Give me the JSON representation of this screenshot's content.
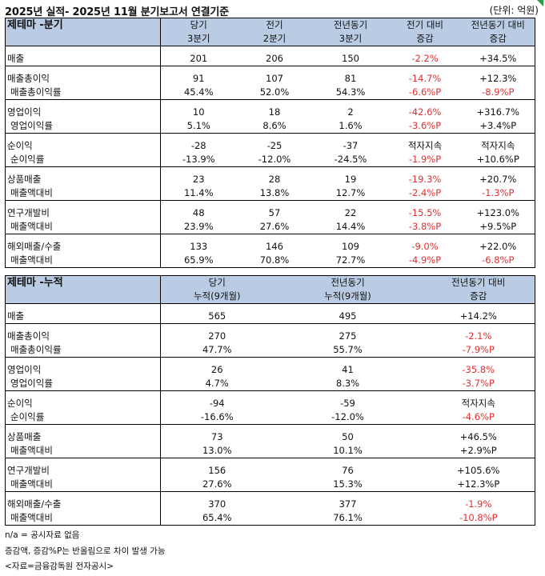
{
  "header": {
    "title": "2025년 실적- 2025년 11월 분기보고서 연결기준",
    "unit": "(단위: 억원)"
  },
  "quarterly": {
    "title": "제테마 -분기",
    "col1": [
      "당기",
      "3분기"
    ],
    "col2": [
      "전기",
      "2분기"
    ],
    "col3": [
      "전년동기",
      "3분기"
    ],
    "col4": [
      "전기 대비",
      "증감"
    ],
    "col5": [
      "전년동기 대비",
      "증감"
    ],
    "rows": [
      [
        "매출",
        "201",
        "206",
        "150",
        "-2.2%",
        "+34.5%"
      ],
      [
        "매출총이익",
        "91",
        "107",
        "81",
        "-14.7%",
        "+12.3%"
      ],
      [
        "매출총이익률",
        "45.4%",
        "52.0%",
        "54.3%",
        "-6.6%P",
        "-8.9%P"
      ],
      [
        "영업이익",
        "10",
        "18",
        "2",
        "-42.6%",
        "+316.7%"
      ],
      [
        "영업이익률",
        "5.1%",
        "8.6%",
        "1.6%",
        "-3.6%P",
        "+3.4%P"
      ],
      [
        "순이익",
        "-28",
        "-25",
        "-37",
        "적자지속",
        "적자지속"
      ],
      [
        "순이익률",
        "-13.9%",
        "-12.0%",
        "-24.5%",
        "-1.9%P",
        "+10.6%P"
      ],
      [
        "상품매출",
        "23",
        "28",
        "19",
        "-19.3%",
        "+20.7%"
      ],
      [
        "매출액대비",
        "11.4%",
        "13.8%",
        "12.7%",
        "-2.4%P",
        "-1.3%P"
      ],
      [
        "연구개발비",
        "48",
        "57",
        "22",
        "-15.5%",
        "+123.0%"
      ],
      [
        "매출액대비",
        "23.9%",
        "27.6%",
        "14.4%",
        "-3.8%P",
        "+9.5%P"
      ],
      [
        "해외매출/수출",
        "133",
        "146",
        "109",
        "-9.0%",
        "+22.0%"
      ],
      [
        "매출액대비",
        "65.9%",
        "70.8%",
        "72.7%",
        "-4.9%P",
        "-6.8%P"
      ]
    ]
  },
  "cumulative": {
    "title": "제테마 -누적",
    "col1": [
      "당기",
      "누적(9개월)"
    ],
    "col2": [
      "전년동기",
      "누적(9개월)"
    ],
    "col3": [
      "전년동기 대비",
      "증감"
    ],
    "rows": [
      [
        "매출",
        "565",
        "495",
        "+14.2%"
      ],
      [
        "매출총이익",
        "270",
        "275",
        "-2.1%"
      ],
      [
        "매출총이익률",
        "47.7%",
        "55.7%",
        "-7.9%P"
      ],
      [
        "영업이익",
        "26",
        "41",
        "-35.8%"
      ],
      [
        "영업이익률",
        "4.7%",
        "8.3%",
        "-3.7%P"
      ],
      [
        "순이익",
        "-94",
        "-59",
        "적자지속"
      ],
      [
        "순이익률",
        "-16.6%",
        "-12.0%",
        "-4.6%P"
      ],
      [
        "상품매출",
        "73",
        "50",
        "+46.5%"
      ],
      [
        "매출액대비",
        "13.0%",
        "10.1%",
        "+2.9%P"
      ],
      [
        "연구개발비",
        "156",
        "76",
        "+105.6%"
      ],
      [
        "매출액대비",
        "27.6%",
        "15.3%",
        "+12.3%P"
      ],
      [
        "해외매출/수출",
        "370",
        "377",
        "-1.9%"
      ],
      [
        "매출액대비",
        "65.4%",
        "76.1%",
        "-10.8%P"
      ]
    ]
  },
  "notes": [
    "n/a = 공시자료 없음",
    "증감액, 증감%P는 반올림으로 차이 발생 가능",
    "<자료=금융감독원 전자공시>"
  ]
}
